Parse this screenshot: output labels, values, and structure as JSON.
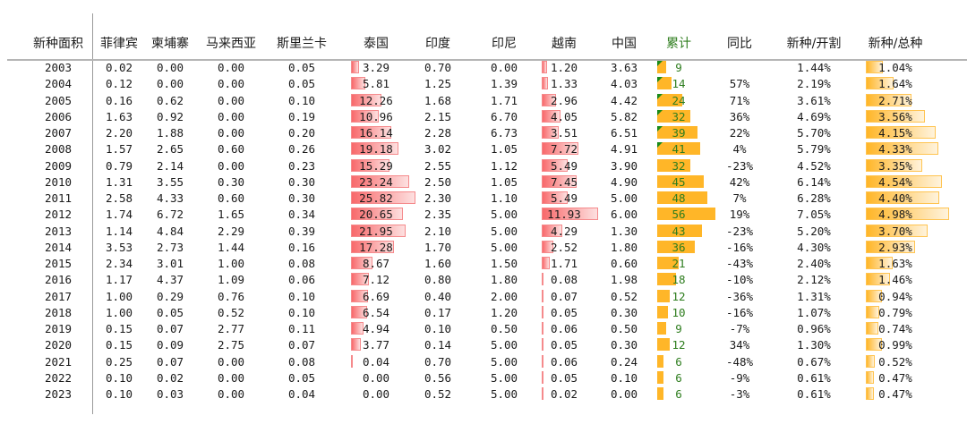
{
  "headers": [
    "新种面积",
    "菲律宾",
    "柬埔寨",
    "马来西亚",
    "斯里兰卡",
    "泰国",
    "印度",
    "印尼",
    "越南",
    "中国",
    "累计",
    "同比",
    "新种/开割",
    "新种/总种"
  ],
  "colors": {
    "thai_bar": "#f8696b",
    "vietnam_bar": "#f8696b",
    "cumulative_bar": "#ffb628",
    "ratio_bar": "#ffb628",
    "cumulative_text": "#2e7d1e",
    "comment_marker": "#1a8a1a"
  },
  "rows": [
    [
      "2003",
      "0.02",
      "0.00",
      "0.00",
      "0.05",
      "3.29",
      "0.70",
      "0.00",
      "1.20",
      "3.63",
      "9",
      "",
      "1.44%",
      "1.04%"
    ],
    [
      "2004",
      "0.12",
      "0.00",
      "0.00",
      "0.05",
      "5.81",
      "1.25",
      "1.39",
      "1.33",
      "4.03",
      "14",
      "57%",
      "2.19%",
      "1.64%"
    ],
    [
      "2005",
      "0.16",
      "0.62",
      "0.00",
      "0.10",
      "12.26",
      "1.68",
      "1.71",
      "2.96",
      "4.42",
      "24",
      "71%",
      "3.61%",
      "2.71%"
    ],
    [
      "2006",
      "1.63",
      "0.92",
      "0.00",
      "0.19",
      "10.96",
      "2.15",
      "6.70",
      "4.05",
      "5.82",
      "32",
      "36%",
      "4.69%",
      "3.56%"
    ],
    [
      "2007",
      "2.20",
      "1.88",
      "0.00",
      "0.20",
      "16.14",
      "2.28",
      "6.73",
      "3.51",
      "6.51",
      "39",
      "22%",
      "5.70%",
      "4.15%"
    ],
    [
      "2008",
      "1.57",
      "2.65",
      "0.60",
      "0.26",
      "19.18",
      "3.02",
      "1.05",
      "7.72",
      "4.91",
      "41",
      "4%",
      "5.79%",
      "4.33%"
    ],
    [
      "2009",
      "0.79",
      "2.14",
      "0.00",
      "0.23",
      "15.29",
      "2.55",
      "1.12",
      "5.49",
      "3.90",
      "32",
      "-23%",
      "4.52%",
      "3.35%"
    ],
    [
      "2010",
      "1.31",
      "3.55",
      "0.30",
      "0.30",
      "23.24",
      "2.50",
      "1.05",
      "7.45",
      "4.90",
      "45",
      "42%",
      "6.14%",
      "4.54%"
    ],
    [
      "2011",
      "2.58",
      "4.33",
      "0.60",
      "0.30",
      "25.82",
      "2.30",
      "1.10",
      "5.49",
      "5.00",
      "48",
      "7%",
      "6.28%",
      "4.40%"
    ],
    [
      "2012",
      "1.74",
      "6.72",
      "1.65",
      "0.34",
      "20.65",
      "2.35",
      "5.00",
      "11.93",
      "6.00",
      "56",
      "19%",
      "7.05%",
      "4.98%"
    ],
    [
      "2013",
      "1.14",
      "4.84",
      "2.29",
      "0.39",
      "21.95",
      "2.10",
      "5.00",
      "4.29",
      "1.30",
      "43",
      "-23%",
      "5.20%",
      "3.70%"
    ],
    [
      "2014",
      "3.53",
      "2.73",
      "1.44",
      "0.16",
      "17.28",
      "1.70",
      "5.00",
      "2.52",
      "1.80",
      "36",
      "-16%",
      "4.30%",
      "2.93%"
    ],
    [
      "2015",
      "2.34",
      "3.01",
      "1.00",
      "0.08",
      "8.67",
      "1.60",
      "1.50",
      "1.71",
      "0.60",
      "21",
      "-43%",
      "2.40%",
      "1.63%"
    ],
    [
      "2016",
      "1.17",
      "4.37",
      "1.09",
      "0.06",
      "7.12",
      "0.80",
      "1.80",
      "0.08",
      "1.98",
      "18",
      "-10%",
      "2.12%",
      "1.46%"
    ],
    [
      "2017",
      "1.00",
      "0.29",
      "0.76",
      "0.10",
      "6.69",
      "0.40",
      "2.00",
      "0.07",
      "0.52",
      "12",
      "-36%",
      "1.31%",
      "0.94%"
    ],
    [
      "2018",
      "1.00",
      "0.05",
      "0.52",
      "0.10",
      "6.54",
      "0.17",
      "1.20",
      "0.05",
      "0.30",
      "10",
      "-16%",
      "1.07%",
      "0.79%"
    ],
    [
      "2019",
      "0.15",
      "0.07",
      "2.77",
      "0.11",
      "4.94",
      "0.10",
      "0.50",
      "0.06",
      "0.50",
      "9",
      "-7%",
      "0.96%",
      "0.74%"
    ],
    [
      "2020",
      "0.15",
      "0.09",
      "2.75",
      "0.07",
      "3.77",
      "0.14",
      "5.00",
      "0.05",
      "0.30",
      "12",
      "34%",
      "1.30%",
      "0.99%"
    ],
    [
      "2021",
      "0.25",
      "0.07",
      "0.00",
      "0.08",
      "0.04",
      "0.70",
      "5.00",
      "0.06",
      "0.24",
      "6",
      "-48%",
      "0.67%",
      "0.52%"
    ],
    [
      "2022",
      "0.10",
      "0.02",
      "0.00",
      "0.05",
      "0.00",
      "0.56",
      "5.00",
      "0.05",
      "0.10",
      "6",
      "-9%",
      "0.61%",
      "0.47%"
    ],
    [
      "2023",
      "0.10",
      "0.03",
      "0.00",
      "0.04",
      "0.00",
      "0.52",
      "5.00",
      "0.02",
      "0.00",
      "6",
      "-3%",
      "0.61%",
      "0.47%"
    ]
  ],
  "comment_marked_years": [
    "2003",
    "2004",
    "2005",
    "2006",
    "2007",
    "2008"
  ]
}
